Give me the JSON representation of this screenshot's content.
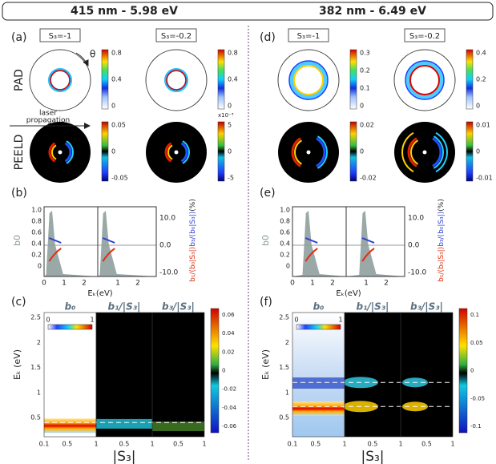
{
  "header": {
    "left": "415 nm - 5.98 eV",
    "right": "382 nm - 6.49 eV"
  },
  "panel_a": {
    "label": "(a)",
    "s3": [
      "S₃=-1",
      "S₃=-0.2"
    ],
    "theta": "θ",
    "pad": "PAD",
    "peeld": "PEELD",
    "laser": [
      "laser",
      "propagation"
    ],
    "pad_colorbars": [
      [
        "0.8",
        "0.4",
        "0"
      ],
      [
        "0.8",
        "0.4",
        "0"
      ]
    ],
    "peeld_colorbars": [
      [
        "0.05",
        "0",
        "-0.05"
      ],
      [
        "5",
        "0",
        "-5"
      ]
    ],
    "peeld_exponent": "x10⁻³"
  },
  "panel_d": {
    "label": "(d)",
    "s3": [
      "S₃=-1",
      "S₃=-0.2"
    ],
    "pad_colorbars": [
      [
        "0.3",
        "0.2",
        "0.1",
        "0"
      ],
      [
        "0.4",
        "0.2",
        "0"
      ]
    ],
    "peeld_colorbars": [
      [
        "0.02",
        "0",
        "-0.02"
      ],
      [
        "0.01",
        "0",
        "-0.01"
      ]
    ]
  },
  "panel_b": {
    "label": "(b)",
    "y_label": "b0",
    "yticks": [
      "1.0",
      "0.8",
      "0.6",
      "0.4",
      "0.2",
      "0"
    ],
    "y2ticks": [
      "10.0",
      "0.0",
      "-10.0"
    ],
    "xticks": [
      "0",
      "1",
      "2"
    ],
    "x_label": "Eₖ(eV)",
    "y2_label": [
      "b₁/(b₀|S₃|)",
      "b₃/(b₀|S₃|)",
      "(%)"
    ]
  },
  "panel_e": {
    "label": "(e)",
    "y_label": "b0",
    "yticks": [
      "1.0",
      "0.8",
      "0.6",
      "0.4",
      "0.2",
      "0"
    ],
    "y2ticks": [
      "10.0",
      "0.0",
      "-10.0"
    ],
    "xticks": [
      "0",
      "1",
      "2"
    ],
    "x_label": "Eₖ(eV)",
    "y2_label": [
      "b₁/(b₀|S₃|)",
      "b₃/(b₀|S₃|)",
      "(%)"
    ]
  },
  "panel_c": {
    "label": "(c)",
    "titles": [
      "b₀",
      "b₁/|S₃|",
      "b₃/|S₃|"
    ],
    "yticks": [
      "2.5",
      "2",
      "1.5",
      "1",
      "0.5"
    ],
    "xticks": [
      "0.1",
      "0.5",
      "1"
    ],
    "inset_ticks": [
      "0",
      "1"
    ],
    "colorbar": [
      "0.06",
      "0.04",
      "0.02",
      "0",
      "-0.02",
      "-0.04",
      "-0.06"
    ],
    "x_label": "|S₃|",
    "y_label": "Eₖ (eV)"
  },
  "panel_f": {
    "label": "(f)",
    "titles": [
      "b₀",
      "b₁/|S₃|",
      "b₃/|S₃|"
    ],
    "yticks": [
      "2.5",
      "2",
      "1.5",
      "1",
      "0.5"
    ],
    "xticks": [
      "0.1",
      "0.5",
      "1"
    ],
    "inset_ticks": [
      "0",
      "1"
    ],
    "colorbar": [
      "0.1",
      "0.05",
      "0",
      "-0.05",
      "-0.1"
    ],
    "x_label": "|S₃|",
    "y_label": "Eₖ (eV)"
  }
}
